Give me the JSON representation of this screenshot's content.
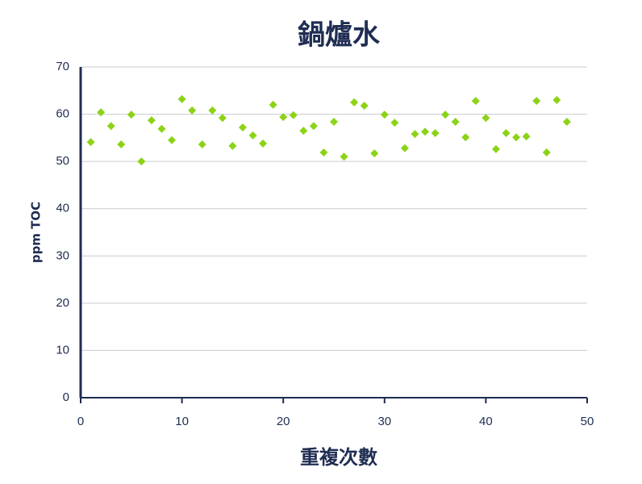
{
  "chart_data": {
    "type": "scatter",
    "title": "鍋爐水",
    "xlabel": "重複次數",
    "ylabel": "ppm TOC",
    "x": [
      1,
      2,
      3,
      4,
      5,
      6,
      7,
      8,
      9,
      10,
      11,
      12,
      13,
      14,
      15,
      16,
      17,
      18,
      19,
      20,
      21,
      22,
      23,
      24,
      25,
      26,
      27,
      28,
      29,
      30,
      31,
      32,
      33,
      34,
      35,
      36,
      37,
      38,
      39,
      40,
      41,
      42,
      43,
      44,
      45,
      46,
      47,
      48
    ],
    "values": [
      54.1,
      60.4,
      57.5,
      53.6,
      59.9,
      50.0,
      58.7,
      56.9,
      54.5,
      63.2,
      60.8,
      53.6,
      60.8,
      59.2,
      53.3,
      57.2,
      55.5,
      53.8,
      62.0,
      59.4,
      59.8,
      56.5,
      57.5,
      51.9,
      58.4,
      51.0,
      62.5,
      61.8,
      51.7,
      59.9,
      58.2,
      52.8,
      55.8,
      56.3,
      56.0,
      59.9,
      58.4,
      55.1,
      62.8,
      59.2,
      52.6,
      56.0,
      55.1,
      55.3,
      62.8,
      51.9,
      63.0,
      58.4
    ],
    "color": "#8cd317",
    "xlim": [
      0,
      50
    ],
    "xticks": [
      0,
      10,
      20,
      30,
      40,
      50
    ],
    "ylim": [
      0,
      70
    ],
    "yticks": [
      0,
      10,
      20,
      30,
      40,
      50,
      60,
      70
    ],
    "grid": true
  }
}
